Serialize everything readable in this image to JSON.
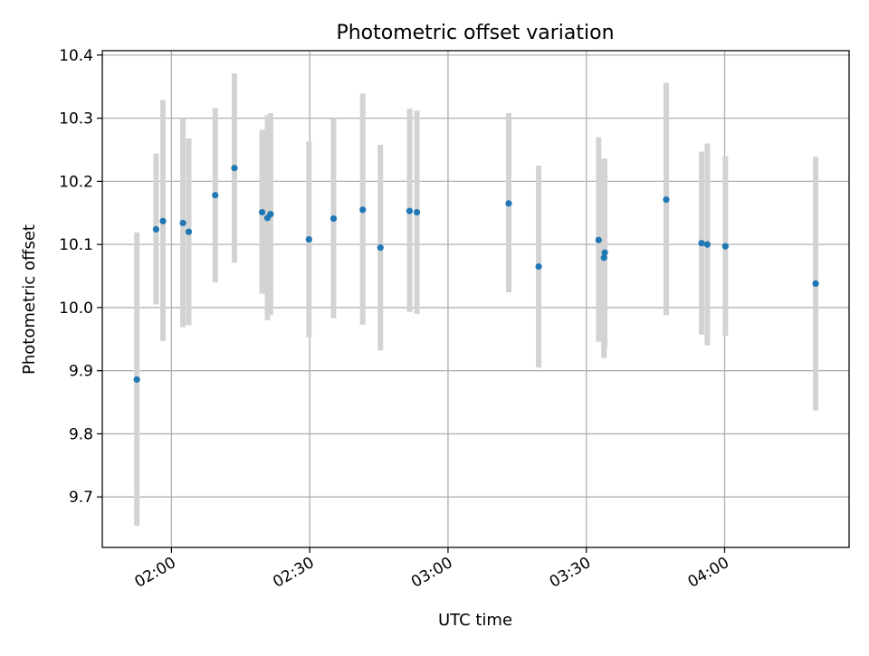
{
  "chart_data": {
    "type": "scatter",
    "title": "Photometric offset variation",
    "xlabel": "UTC time",
    "ylabel": "Photometric offset",
    "xlim": [
      "01:45",
      "04:27"
    ],
    "ylim": [
      9.62,
      10.407
    ],
    "grid": true,
    "legend": "none",
    "x_ticks": [
      "02:00",
      "02:30",
      "03:00",
      "03:30",
      "04:00"
    ],
    "y_ticks": [
      9.7,
      9.8,
      9.9,
      10.0,
      10.1,
      10.2,
      10.3,
      10.4
    ],
    "y_tick_labels": [
      "9.7",
      "9.8",
      "9.9",
      "10.0",
      "10.1",
      "10.2",
      "10.3",
      "10.4"
    ],
    "colors": {
      "points": "#1f77b4",
      "errorbars": "#d3d3d3",
      "grid": "#b0b0b0"
    },
    "series": [
      {
        "points": [
          {
            "x": "01:52:30",
            "y": 9.886,
            "yerr_low": 9.654,
            "yerr_high": 10.119
          },
          {
            "x": "01:56:40",
            "y": 10.124,
            "yerr_low": 10.005,
            "yerr_high": 10.244
          },
          {
            "x": "01:58:10",
            "y": 10.137,
            "yerr_low": 9.947,
            "yerr_high": 10.329
          },
          {
            "x": "02:02:30",
            "y": 10.134,
            "yerr_low": 9.969,
            "yerr_high": 10.3
          },
          {
            "x": "02:03:45",
            "y": 10.12,
            "yerr_low": 9.972,
            "yerr_high": 10.268
          },
          {
            "x": "02:09:30",
            "y": 10.178,
            "yerr_low": 10.04,
            "yerr_high": 10.316
          },
          {
            "x": "02:13:40",
            "y": 10.221,
            "yerr_low": 10.071,
            "yerr_high": 10.371
          },
          {
            "x": "02:19:40",
            "y": 10.151,
            "yerr_low": 10.022,
            "yerr_high": 10.282
          },
          {
            "x": "02:20:50",
            "y": 10.142,
            "yerr_low": 9.98,
            "yerr_high": 10.305
          },
          {
            "x": "02:21:30",
            "y": 10.148,
            "yerr_low": 9.988,
            "yerr_high": 10.308
          },
          {
            "x": "02:29:50",
            "y": 10.108,
            "yerr_low": 9.953,
            "yerr_high": 10.263
          },
          {
            "x": "02:35:10",
            "y": 10.141,
            "yerr_low": 9.983,
            "yerr_high": 10.3
          },
          {
            "x": "02:41:30",
            "y": 10.155,
            "yerr_low": 9.973,
            "yerr_high": 10.339
          },
          {
            "x": "02:45:20",
            "y": 10.095,
            "yerr_low": 9.932,
            "yerr_high": 10.258
          },
          {
            "x": "02:51:40",
            "y": 10.153,
            "yerr_low": 9.993,
            "yerr_high": 10.315
          },
          {
            "x": "02:53:15",
            "y": 10.151,
            "yerr_low": 9.99,
            "yerr_high": 10.312
          },
          {
            "x": "03:13:10",
            "y": 10.165,
            "yerr_low": 10.024,
            "yerr_high": 10.308
          },
          {
            "x": "03:19:40",
            "y": 10.065,
            "yerr_low": 9.905,
            "yerr_high": 10.225
          },
          {
            "x": "03:32:40",
            "y": 10.107,
            "yerr_low": 9.946,
            "yerr_high": 10.27
          },
          {
            "x": "03:34:00",
            "y": 10.087,
            "yerr_low": 9.937,
            "yerr_high": 10.236
          },
          {
            "x": "03:33:50",
            "y": 10.079,
            "yerr_low": 9.92,
            "yerr_high": 10.236
          },
          {
            "x": "03:47:20",
            "y": 10.171,
            "yerr_low": 9.988,
            "yerr_high": 10.356
          },
          {
            "x": "03:55:00",
            "y": 10.102,
            "yerr_low": 9.957,
            "yerr_high": 10.247
          },
          {
            "x": "03:56:15",
            "y": 10.1,
            "yerr_low": 9.94,
            "yerr_high": 10.26
          },
          {
            "x": "04:00:10",
            "y": 10.097,
            "yerr_low": 9.955,
            "yerr_high": 10.24
          },
          {
            "x": "04:19:45",
            "y": 10.038,
            "yerr_low": 9.837,
            "yerr_high": 10.239
          }
        ]
      }
    ]
  }
}
